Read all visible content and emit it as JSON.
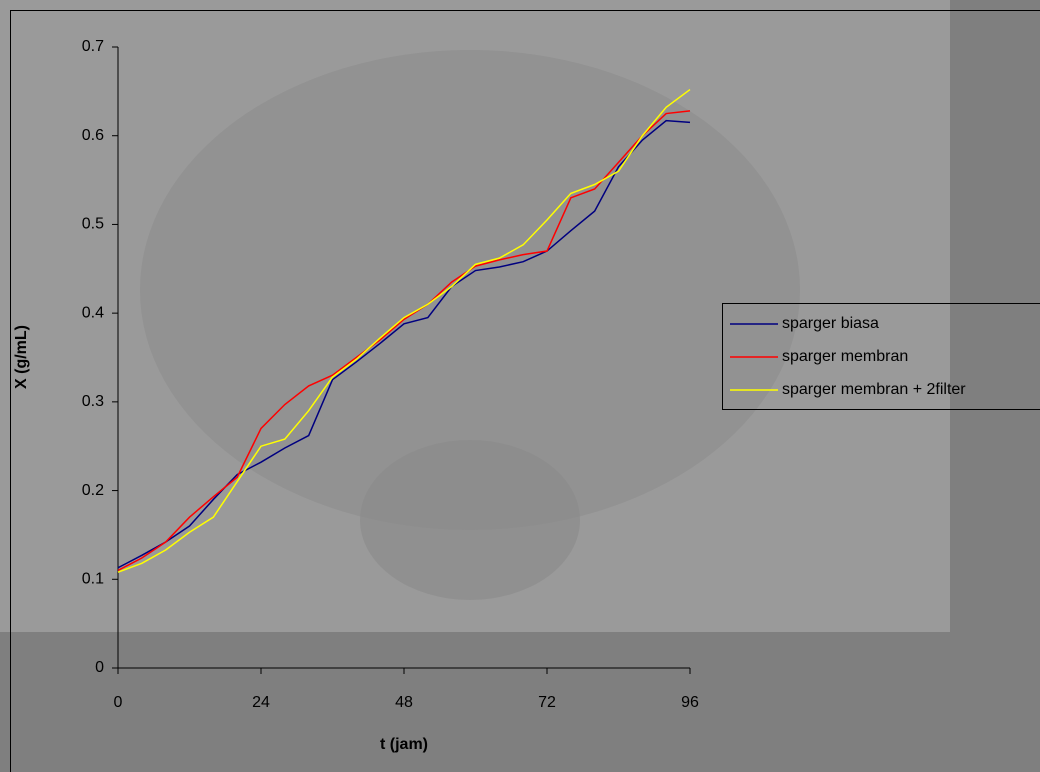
{
  "chart_data": {
    "type": "line",
    "x_label": "t (jam)",
    "y_label": "X (g/mL)",
    "x": [
      0,
      4,
      8,
      12,
      16,
      20,
      24,
      28,
      32,
      36,
      40,
      44,
      48,
      52,
      56,
      60,
      64,
      68,
      72,
      76,
      80,
      84,
      88,
      92,
      96
    ],
    "series": [
      {
        "name": "sparger biasa",
        "color": "#000080",
        "values": [
          0.113,
          0.127,
          0.142,
          0.16,
          0.19,
          0.218,
          0.232,
          0.248,
          0.262,
          0.325,
          0.345,
          0.366,
          0.388,
          0.395,
          0.43,
          0.448,
          0.452,
          0.458,
          0.47,
          0.493,
          0.515,
          0.565,
          0.595,
          0.617,
          0.615
        ]
      },
      {
        "name": "sparger membran",
        "color": "#ff0000",
        "values": [
          0.11,
          0.124,
          0.142,
          0.17,
          0.193,
          0.215,
          0.27,
          0.297,
          0.318,
          0.33,
          0.35,
          0.37,
          0.393,
          0.41,
          0.435,
          0.453,
          0.46,
          0.466,
          0.47,
          0.53,
          0.54,
          0.57,
          0.6,
          0.625,
          0.628
        ]
      },
      {
        "name": "sparger membran + 2filter",
        "color": "#ffff00",
        "values": [
          0.108,
          0.118,
          0.133,
          0.153,
          0.17,
          0.21,
          0.25,
          0.258,
          0.29,
          0.328,
          0.348,
          0.372,
          0.395,
          0.41,
          0.43,
          0.455,
          0.462,
          0.477,
          0.505,
          0.535,
          0.545,
          0.56,
          0.6,
          0.632,
          0.652
        ]
      }
    ],
    "xlim": [
      0,
      96
    ],
    "xticks": [
      0,
      24,
      48,
      72,
      96
    ],
    "ylim": [
      0,
      0.7
    ],
    "yticks": [
      0,
      0.1,
      0.2,
      0.3,
      0.4,
      0.5,
      0.6,
      0.7
    ],
    "legend": "right"
  }
}
